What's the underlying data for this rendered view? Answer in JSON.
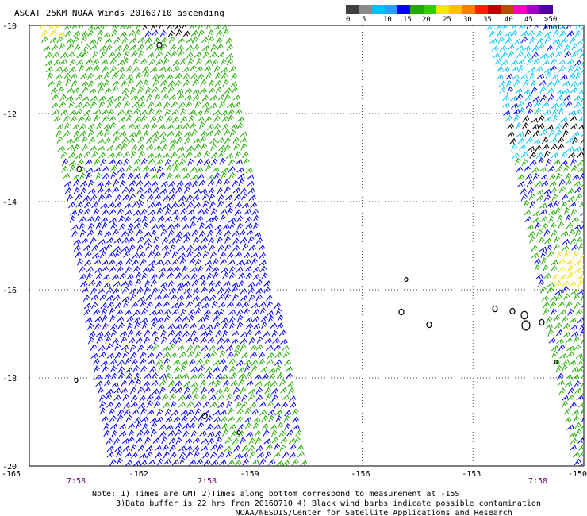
{
  "title": "ASCAT 25KM NOAA Winds 20160710 ascending",
  "legend": {
    "labels": [
      "0",
      "5",
      "10",
      "15",
      "20",
      "25",
      "30",
      "35",
      "40",
      "45",
      ">50 knots"
    ],
    "colors": [
      "#404040",
      "#8a8a8a",
      "#00c0ff",
      "#2a9cff",
      "#0000ff",
      "#22a800",
      "#33cc00",
      "#f0e800",
      "#ffc000",
      "#ff7a00",
      "#ff2000",
      "#c00000",
      "#b05000",
      "#ff00c0",
      "#a000c0",
      "#5000a0"
    ]
  },
  "axes": {
    "lat_labels": [
      "-10",
      "-12",
      "-14",
      "-16",
      "-18",
      "-20"
    ],
    "lon_labels": [
      "-165",
      "-162",
      "-159",
      "-156",
      "-153",
      "-150"
    ],
    "time_labels": [
      "7:58",
      "7:58",
      "7:58"
    ]
  },
  "notes": [
    "Note: 1) Times are GMT 2)Times along bottom correspond to measurement at -15S",
    "     3)Data buffer is 22 hrs from 20160710 4) Black wind barbs indicate possible contamination",
    "                              NOAA/NESDIS/Center for Satellite Applications and Research"
  ],
  "palette": {
    "blue": "#0000ff",
    "green": "#20b000",
    "cyan": "#00c8ff",
    "yellow": "#f0e000",
    "black": "#000000",
    "time_label": "#6a0a6a"
  },
  "map": {
    "lat_range": [
      -20,
      -10
    ],
    "lon_range": [
      -165,
      -150
    ],
    "islands_shown": true
  }
}
